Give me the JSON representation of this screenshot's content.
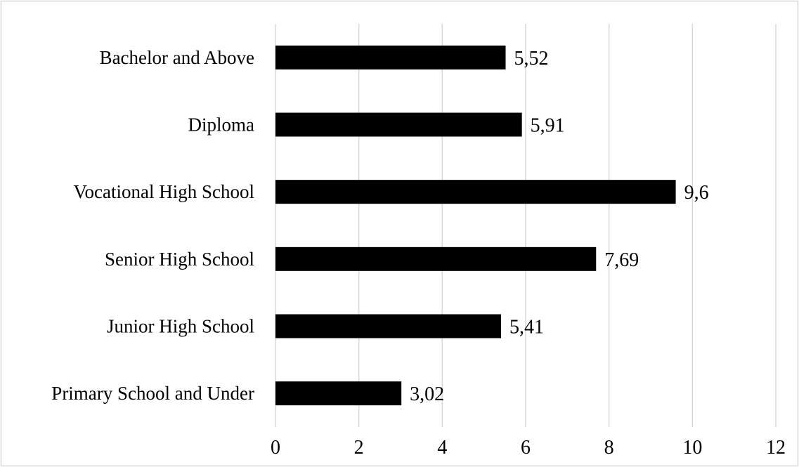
{
  "chart_data": {
    "type": "bar",
    "orientation": "horizontal",
    "categories": [
      "Bachelor and Above",
      "Diploma",
      "Vocational High School",
      "Senior High School",
      "Junior High School",
      "Primary School and Under"
    ],
    "values": [
      5.52,
      5.91,
      9.6,
      7.69,
      5.41,
      3.02
    ],
    "value_labels": [
      "5,52",
      "5,91",
      "9,6",
      "7,69",
      "5,41",
      "3,02"
    ],
    "xlim": [
      0,
      12
    ],
    "x_ticks": [
      0,
      2,
      4,
      6,
      8,
      10,
      12
    ],
    "title": "",
    "xlabel": "",
    "ylabel": "",
    "grid": "vertical",
    "legend": "none",
    "colors": {
      "bar": "#000000",
      "grid": "#d9d9d9",
      "frame": "#d9d9d9",
      "background": "#ffffff"
    }
  }
}
